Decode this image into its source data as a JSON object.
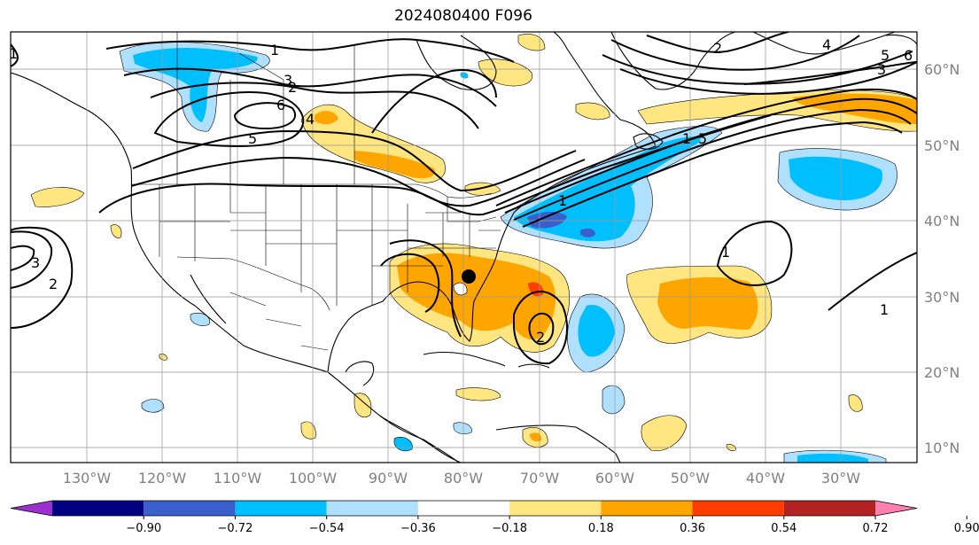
{
  "title": "2024080400 F096",
  "map": {
    "projection": "plate-carree",
    "lon_range": [
      -145,
      -25
    ],
    "lat_range": [
      8,
      65
    ],
    "longitude_labels": [
      "130°W",
      "120°W",
      "110°W",
      "100°W",
      "90°W",
      "80°W",
      "70°W",
      "60°W",
      "50°W",
      "40°W",
      "30°W"
    ],
    "latitude_labels": [
      "60°N",
      "50°N",
      "40°N",
      "30°N",
      "20°N",
      "10°N"
    ],
    "gridlines": true,
    "storm_marker": {
      "lon": -80.7,
      "lat": 32.6,
      "color": "#000000"
    }
  },
  "contour_labels": [
    "1",
    "2",
    "3",
    "4",
    "5",
    "6",
    "1",
    "2",
    "3",
    "4",
    "5",
    "6",
    "5",
    "1",
    "1",
    "1",
    "2",
    "3",
    "2",
    "1"
  ],
  "colorbar": {
    "tick_labels": [
      "−0.90",
      "−0.72",
      "−0.54",
      "−0.36",
      "−0.18",
      "0.18",
      "0.36",
      "0.54",
      "0.72",
      "0.90"
    ],
    "colors": [
      "#9b30d0",
      "#000080",
      "#3a5fcd",
      "#00bfff",
      "#b0e0ff",
      "#ffffff",
      "#ffe680",
      "#ffa500",
      "#ff3c00",
      "#b22222",
      "#ff7fb0"
    ],
    "extend": "both"
  }
}
